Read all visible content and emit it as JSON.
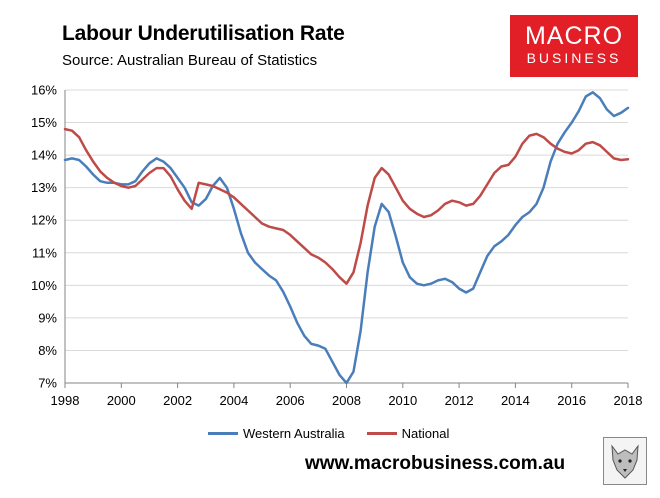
{
  "header": {
    "title": "Labour Underutilisation Rate",
    "subtitle": "Source: Australian Bureau of Statistics"
  },
  "logo": {
    "line1": "MACRO",
    "line2": "BUSINESS",
    "color": "#e21f26"
  },
  "footer": {
    "url": "www.macrobusiness.com.au"
  },
  "chart_data": {
    "type": "line",
    "title": "Labour Underutilisation Rate",
    "xlabel": "",
    "ylabel": "",
    "xlim": [
      1998,
      2018
    ],
    "ylim": [
      7,
      16
    ],
    "x_ticks": [
      1998,
      2000,
      2002,
      2004,
      2006,
      2008,
      2010,
      2012,
      2014,
      2016,
      2018
    ],
    "x_tick_labels": [
      "1998",
      "2000",
      "2002",
      "2004",
      "2006",
      "2008",
      "2010",
      "2012",
      "2014",
      "2016",
      "2018"
    ],
    "y_ticks": [
      7,
      8,
      9,
      10,
      11,
      12,
      13,
      14,
      15,
      16
    ],
    "y_tick_labels": [
      "7%",
      "8%",
      "9%",
      "10%",
      "11%",
      "12%",
      "13%",
      "14%",
      "15%",
      "16%"
    ],
    "grid": "horizontal",
    "legend_position": "bottom",
    "series": [
      {
        "name": "Western Australia",
        "color": "#4a7ebb",
        "x": [
          1998.0,
          1998.25,
          1998.5,
          1998.75,
          1999.0,
          1999.25,
          1999.5,
          1999.75,
          2000.0,
          2000.25,
          2000.5,
          2000.75,
          2001.0,
          2001.25,
          2001.5,
          2001.75,
          2002.0,
          2002.25,
          2002.5,
          2002.75,
          2003.0,
          2003.25,
          2003.5,
          2003.75,
          2004.0,
          2004.25,
          2004.5,
          2004.75,
          2005.0,
          2005.25,
          2005.5,
          2005.75,
          2006.0,
          2006.25,
          2006.5,
          2006.75,
          2007.0,
          2007.25,
          2007.5,
          2007.75,
          2008.0,
          2008.25,
          2008.5,
          2008.75,
          2009.0,
          2009.25,
          2009.5,
          2009.75,
          2010.0,
          2010.25,
          2010.5,
          2010.75,
          2011.0,
          2011.25,
          2011.5,
          2011.75,
          2012.0,
          2012.25,
          2012.5,
          2012.75,
          2013.0,
          2013.25,
          2013.5,
          2013.75,
          2014.0,
          2014.25,
          2014.5,
          2014.75,
          2015.0,
          2015.25,
          2015.5,
          2015.75,
          2016.0,
          2016.25,
          2016.5,
          2016.75,
          2017.0,
          2017.25,
          2017.5,
          2017.75,
          2018.0
        ],
        "values": [
          13.85,
          13.9,
          13.85,
          13.65,
          13.4,
          13.2,
          13.15,
          13.15,
          13.1,
          13.1,
          13.2,
          13.5,
          13.75,
          13.9,
          13.8,
          13.6,
          13.3,
          13.0,
          12.55,
          12.45,
          12.65,
          13.05,
          13.3,
          13.0,
          12.35,
          11.6,
          11.0,
          10.7,
          10.5,
          10.3,
          10.15,
          9.8,
          9.35,
          8.85,
          8.45,
          8.2,
          8.15,
          8.05,
          7.65,
          7.25,
          7.0,
          7.35,
          8.6,
          10.4,
          11.8,
          12.5,
          12.25,
          11.5,
          10.7,
          10.25,
          10.05,
          10.0,
          10.05,
          10.15,
          10.2,
          10.1,
          9.9,
          9.78,
          9.9,
          10.4,
          10.9,
          11.2,
          11.35,
          11.55,
          11.85,
          12.1,
          12.25,
          12.5,
          13.0,
          13.8,
          14.35,
          14.7,
          15.0,
          15.35,
          15.8,
          15.93,
          15.75,
          15.4,
          15.2,
          15.3,
          15.45
        ]
      },
      {
        "name": "National",
        "color": "#be4b48",
        "x": [
          1998.0,
          1998.25,
          1998.5,
          1998.75,
          1999.0,
          1999.25,
          1999.5,
          1999.75,
          2000.0,
          2000.25,
          2000.5,
          2000.75,
          2001.0,
          2001.25,
          2001.5,
          2001.75,
          2002.0,
          2002.25,
          2002.5,
          2002.75,
          2003.0,
          2003.25,
          2003.5,
          2003.75,
          2004.0,
          2004.25,
          2004.5,
          2004.75,
          2005.0,
          2005.25,
          2005.5,
          2005.75,
          2006.0,
          2006.25,
          2006.5,
          2006.75,
          2007.0,
          2007.25,
          2007.5,
          2007.75,
          2008.0,
          2008.25,
          2008.5,
          2008.75,
          2009.0,
          2009.25,
          2009.5,
          2009.75,
          2010.0,
          2010.25,
          2010.5,
          2010.75,
          2011.0,
          2011.25,
          2011.5,
          2011.75,
          2012.0,
          2012.25,
          2012.5,
          2012.75,
          2013.0,
          2013.25,
          2013.5,
          2013.75,
          2014.0,
          2014.25,
          2014.5,
          2014.75,
          2015.0,
          2015.25,
          2015.5,
          2015.75,
          2016.0,
          2016.25,
          2016.5,
          2016.75,
          2017.0,
          2017.25,
          2017.5,
          2017.75,
          2018.0
        ],
        "values": [
          14.8,
          14.75,
          14.55,
          14.15,
          13.8,
          13.5,
          13.3,
          13.15,
          13.05,
          13.0,
          13.05,
          13.25,
          13.45,
          13.6,
          13.6,
          13.35,
          12.95,
          12.6,
          12.35,
          13.15,
          13.1,
          13.05,
          12.95,
          12.85,
          12.7,
          12.5,
          12.3,
          12.1,
          11.9,
          11.8,
          11.75,
          11.7,
          11.55,
          11.35,
          11.15,
          10.95,
          10.85,
          10.7,
          10.5,
          10.25,
          10.05,
          10.4,
          11.3,
          12.45,
          13.3,
          13.6,
          13.4,
          13.0,
          12.6,
          12.35,
          12.2,
          12.1,
          12.15,
          12.3,
          12.5,
          12.6,
          12.55,
          12.45,
          12.5,
          12.75,
          13.1,
          13.45,
          13.65,
          13.7,
          13.95,
          14.35,
          14.6,
          14.65,
          14.55,
          14.35,
          14.2,
          14.1,
          14.05,
          14.15,
          14.35,
          14.4,
          14.3,
          14.1,
          13.9,
          13.85,
          13.87
        ]
      }
    ]
  }
}
